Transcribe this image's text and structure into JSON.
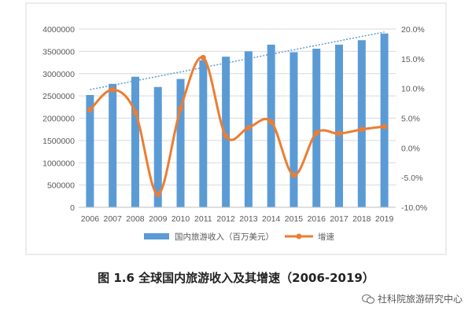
{
  "chart_data": {
    "type": "bar",
    "categories": [
      "2006",
      "2007",
      "2008",
      "2009",
      "2010",
      "2011",
      "2012",
      "2013",
      "2014",
      "2015",
      "2016",
      "2017",
      "2018",
      "2019"
    ],
    "series": [
      {
        "name": "国内旅游收入（百万美元）",
        "type": "bar",
        "axis": "left",
        "values": [
          2520000,
          2770000,
          2930000,
          2700000,
          2880000,
          3300000,
          3380000,
          3500000,
          3650000,
          3480000,
          3560000,
          3650000,
          3750000,
          3900000
        ]
      },
      {
        "name": "增速",
        "type": "line",
        "axis": "right",
        "values": [
          6.4,
          9.8,
          6.0,
          -7.8,
          6.6,
          15.2,
          2.0,
          3.4,
          4.4,
          -4.6,
          2.5,
          2.4,
          3.1,
          3.6
        ]
      }
    ],
    "trend_line": {
      "from": [
        2006,
        9.8
      ],
      "to": [
        2019,
        19.5
      ]
    },
    "y_left": {
      "min": 0,
      "max": 4000000,
      "ticks": [
        "0",
        "500000",
        "1000000",
        "1500000",
        "2000000",
        "2500000",
        "3000000",
        "3500000",
        "4000000"
      ]
    },
    "y_right": {
      "min": -10,
      "max": 20,
      "ticks": [
        "-10.0%",
        "-5.0%",
        "0.0%",
        "5.0%",
        "10.0%",
        "15.0%",
        "20.0%"
      ]
    },
    "grid": true,
    "legend_position": "bottom",
    "colors": {
      "bar": "#5b9bd5",
      "line": "#ed7d31",
      "trend": "#5b9bd5",
      "grid": "#d9d9d9",
      "axis_text": "#595959"
    }
  },
  "caption": "图 1.6 全球国内旅游收入及其增速（2006-2019）",
  "watermark": "社科院旅游研究中心"
}
